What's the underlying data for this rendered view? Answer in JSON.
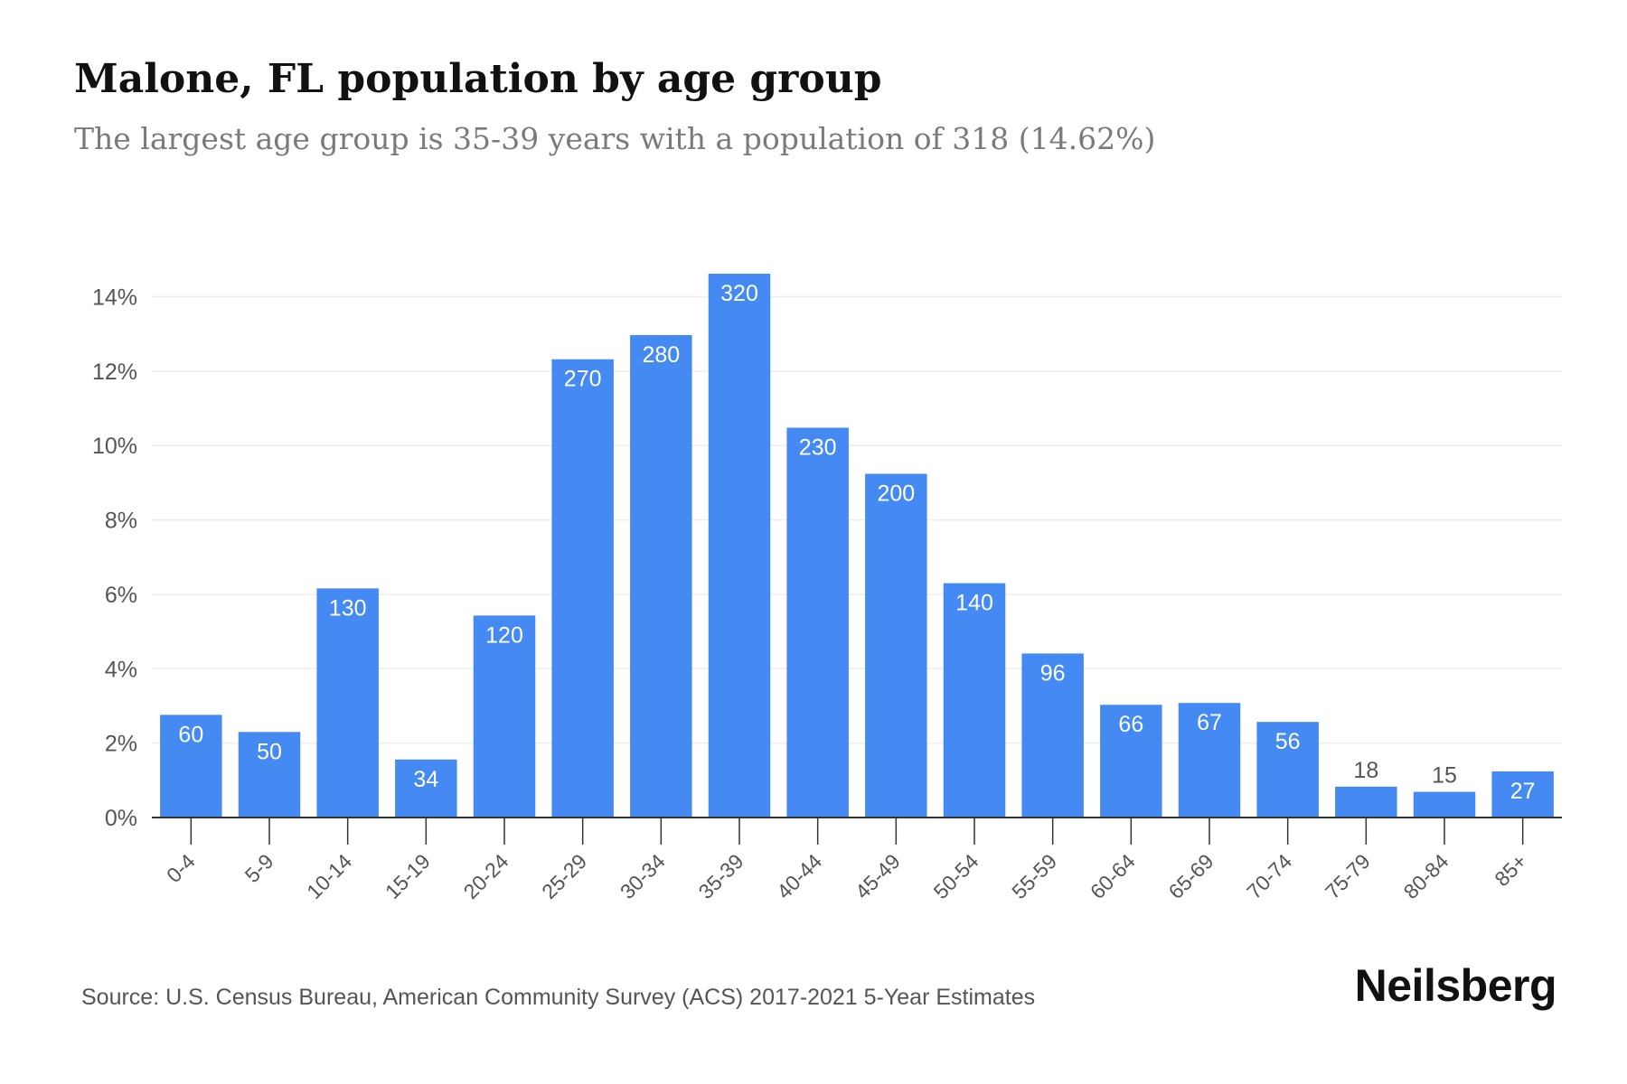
{
  "header": {
    "title": "Malone, FL population by age group",
    "subtitle": "The largest age group is 35-39 years with a population of 318 (14.62%)"
  },
  "footer": {
    "source": "Source: U.S. Census Bureau, American Community Survey (ACS) 2017-2021 5-Year Estimates",
    "brand": "Neilsberg"
  },
  "colors": {
    "bar": "#4589f2",
    "label_inside": "#ffffff",
    "label_outside": "#555555",
    "axis_text": "#555555",
    "grid": "#eeeeee",
    "axis_line": "#333333"
  },
  "chart_data": {
    "type": "bar",
    "categories": [
      "0-4",
      "5-9",
      "10-14",
      "15-19",
      "20-24",
      "25-29",
      "30-34",
      "35-39",
      "40-44",
      "45-49",
      "50-54",
      "55-59",
      "60-64",
      "65-69",
      "70-74",
      "75-79",
      "80-84",
      "85+"
    ],
    "values": [
      2.76,
      2.3,
      6.16,
      1.56,
      5.43,
      12.32,
      12.97,
      14.62,
      10.48,
      9.24,
      6.3,
      4.41,
      3.03,
      3.08,
      2.57,
      0.83,
      0.69,
      1.24
    ],
    "data_labels": [
      "60",
      "50",
      "130",
      "34",
      "120",
      "270",
      "280",
      "320",
      "230",
      "200",
      "140",
      "96",
      "66",
      "67",
      "56",
      "18",
      "15",
      "27"
    ],
    "y_ticks": [
      0,
      2,
      4,
      6,
      8,
      10,
      12,
      14
    ],
    "y_tick_labels": [
      "0%",
      "2%",
      "4%",
      "6%",
      "8%",
      "10%",
      "12%",
      "14%"
    ],
    "ylim": [
      0,
      14.62
    ],
    "xlabel": "",
    "ylabel": "",
    "grid": true,
    "legend": "none"
  }
}
